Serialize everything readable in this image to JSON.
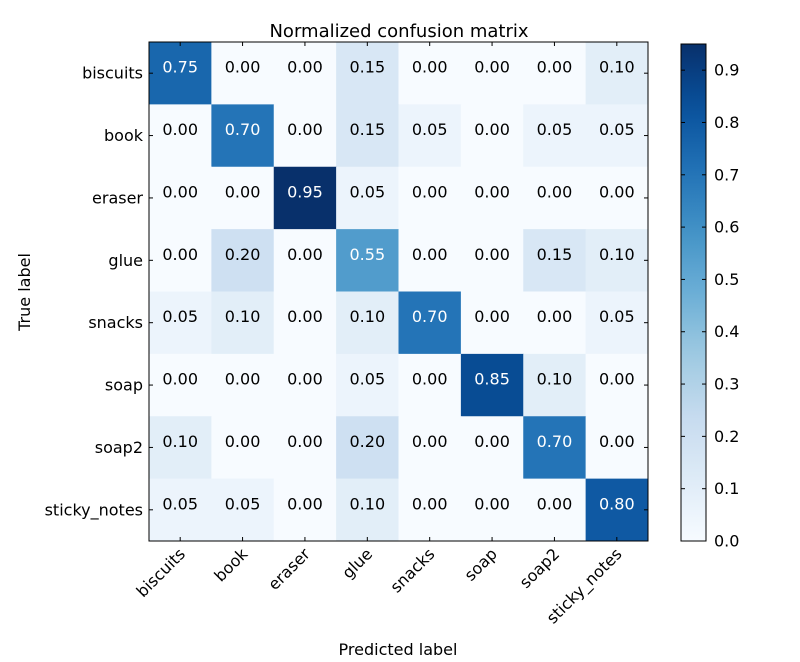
{
  "chart_data": {
    "type": "heatmap",
    "title": "Normalized confusion matrix",
    "xlabel": "Predicted label",
    "ylabel": "True label",
    "x_categories": [
      "biscuits",
      "book",
      "eraser",
      "glue",
      "snacks",
      "soap",
      "soap2",
      "sticky_notes"
    ],
    "y_categories": [
      "biscuits",
      "book",
      "eraser",
      "glue",
      "snacks",
      "soap",
      "soap2",
      "sticky_notes"
    ],
    "values": [
      [
        0.75,
        0.0,
        0.0,
        0.15,
        0.0,
        0.0,
        0.0,
        0.1
      ],
      [
        0.0,
        0.7,
        0.0,
        0.15,
        0.05,
        0.0,
        0.05,
        0.05
      ],
      [
        0.0,
        0.0,
        0.95,
        0.05,
        0.0,
        0.0,
        0.0,
        0.0
      ],
      [
        0.0,
        0.2,
        0.0,
        0.55,
        0.0,
        0.0,
        0.15,
        0.1
      ],
      [
        0.05,
        0.1,
        0.0,
        0.1,
        0.7,
        0.0,
        0.0,
        0.05
      ],
      [
        0.0,
        0.0,
        0.0,
        0.05,
        0.0,
        0.85,
        0.1,
        0.0
      ],
      [
        0.1,
        0.0,
        0.0,
        0.2,
        0.0,
        0.0,
        0.7,
        0.0
      ],
      [
        0.05,
        0.05,
        0.0,
        0.1,
        0.0,
        0.0,
        0.0,
        0.8
      ]
    ],
    "colormap": "Blues",
    "value_range": [
      0.0,
      0.95
    ],
    "colorbar_ticks": [
      "0.0",
      "0.1",
      "0.2",
      "0.3",
      "0.4",
      "0.5",
      "0.6",
      "0.7",
      "0.8",
      "0.9"
    ],
    "grid": false,
    "colors": {
      "low": "#f7fbff",
      "high": "#08306b",
      "text_dark": "#000000",
      "text_light": "#ffffff"
    }
  }
}
